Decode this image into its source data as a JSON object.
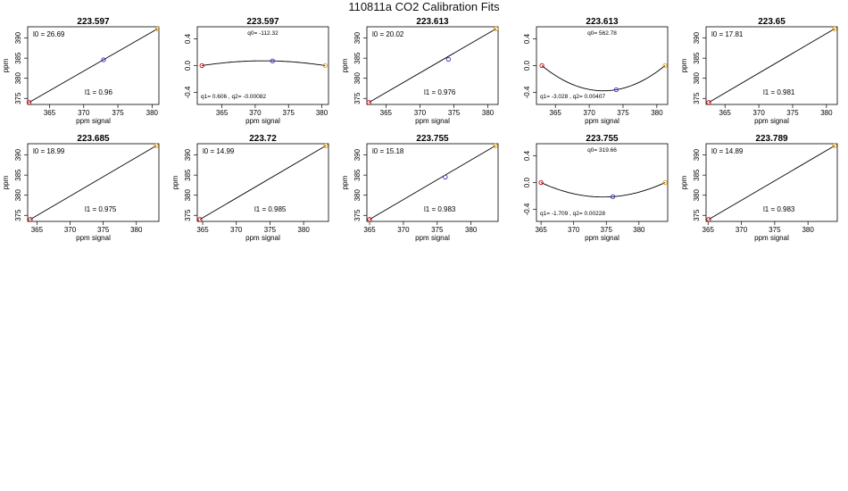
{
  "page": {
    "title": "110811a   CO2 Calibration Fits"
  },
  "chart_data": [
    {
      "type": "scatter",
      "title": "223.597",
      "xlabel": "ppm signal",
      "ylabel": "ppm",
      "xlim": [
        361.8,
        381.0
      ],
      "ylim": [
        373.5,
        392.8
      ],
      "xticks": [
        365,
        370,
        375,
        380
      ],
      "yticks": [
        375,
        380,
        385,
        390
      ],
      "points": [
        {
          "x": 362.0,
          "y": 374.0,
          "color": "#cc0000"
        },
        {
          "x": 372.9,
          "y": 384.6,
          "color": "#3333cc"
        },
        {
          "x": 380.8,
          "y": 392.3,
          "color": "#e69f00"
        }
      ],
      "fit": {
        "kind": "linear",
        "x0": 362.0,
        "y0": 374.0,
        "x1": 380.8,
        "y1": 392.3
      },
      "annotations": [
        {
          "text": "l0 =  26.69",
          "pos": "top-left"
        },
        {
          "text": "l1 =  0.96",
          "pos": "bottom-mid"
        }
      ]
    },
    {
      "type": "scatter",
      "title": "223.597",
      "xlabel": "ppm signal",
      "ylabel": "",
      "xlim": [
        361.3,
        381.0
      ],
      "ylim": [
        -0.58,
        0.58
      ],
      "xticks": [
        365,
        370,
        375,
        380
      ],
      "yticks": [
        -0.4,
        0.0,
        0.4
      ],
      "points": [
        {
          "x": 362.0,
          "y": 0.0,
          "color": "#cc0000"
        },
        {
          "x": 372.6,
          "y": 0.07,
          "color": "#3333cc"
        },
        {
          "x": 380.5,
          "y": 0.0,
          "color": "#e69f00"
        }
      ],
      "fit": {
        "kind": "quadratic",
        "x0": 362.0,
        "xm": 372.6,
        "x1": 380.5,
        "ym": 0.07
      },
      "annotations": [
        {
          "text": "q0= -112.32",
          "pos": "top-mid"
        },
        {
          "text": "q1= 0.606 , q2= -0.00082",
          "pos": "bottom-left"
        }
      ]
    },
    {
      "type": "scatter",
      "title": "223.613",
      "xlabel": "ppm signal",
      "ylabel": "ppm",
      "xlim": [
        362.2,
        381.5
      ],
      "ylim": [
        373.5,
        392.8
      ],
      "xticks": [
        365,
        370,
        375,
        380
      ],
      "yticks": [
        375,
        380,
        385,
        390
      ],
      "points": [
        {
          "x": 362.5,
          "y": 374.0,
          "color": "#cc0000"
        },
        {
          "x": 374.2,
          "y": 384.7,
          "color": "#3333cc"
        },
        {
          "x": 381.2,
          "y": 392.3,
          "color": "#e69f00"
        }
      ],
      "fit": {
        "kind": "linear",
        "x0": 362.5,
        "y0": 374.0,
        "x1": 381.2,
        "y1": 392.3
      },
      "annotations": [
        {
          "text": "l0 =  20.02",
          "pos": "top-left"
        },
        {
          "text": "l1 =  0.976",
          "pos": "bottom-mid"
        }
      ]
    },
    {
      "type": "scatter",
      "title": "223.613",
      "xlabel": "ppm signal",
      "ylabel": "",
      "xlim": [
        362.2,
        381.6
      ],
      "ylim": [
        -0.58,
        0.58
      ],
      "xticks": [
        365,
        370,
        375,
        380
      ],
      "yticks": [
        -0.4,
        0.0,
        0.4
      ],
      "points": [
        {
          "x": 363.0,
          "y": 0.0,
          "color": "#cc0000"
        },
        {
          "x": 374.0,
          "y": -0.36,
          "color": "#3333cc"
        },
        {
          "x": 381.2,
          "y": 0.0,
          "color": "#e69f00"
        }
      ],
      "fit": {
        "kind": "quadratic",
        "x0": 363.0,
        "xm": 374.0,
        "x1": 381.2,
        "ym": -0.36
      },
      "annotations": [
        {
          "text": "q0= 562.78",
          "pos": "top-mid"
        },
        {
          "text": "q1= -3.028 , q2= 0.00407",
          "pos": "bottom-left"
        }
      ]
    },
    {
      "type": "scatter",
      "title": "223.65",
      "xlabel": "ppm signal",
      "ylabel": "ppm",
      "xlim": [
        362.2,
        381.6
      ],
      "ylim": [
        373.5,
        392.8
      ],
      "xticks": [
        365,
        370,
        375,
        380
      ],
      "yticks": [
        375,
        380,
        385,
        390
      ],
      "points": [
        {
          "x": 362.6,
          "y": 374.0,
          "color": "#cc0000"
        },
        {
          "x": 381.2,
          "y": 392.3,
          "color": "#e69f00"
        }
      ],
      "fit": {
        "kind": "linear",
        "x0": 362.6,
        "y0": 374.0,
        "x1": 381.2,
        "y1": 392.3
      },
      "annotations": [
        {
          "text": "l0 =  17.81",
          "pos": "top-left"
        },
        {
          "text": "l1 =  0.981",
          "pos": "bottom-mid"
        }
      ]
    },
    {
      "type": "scatter",
      "title": "223.685",
      "xlabel": "ppm signal",
      "ylabel": "ppm",
      "xlim": [
        363.6,
        383.4
      ],
      "ylim": [
        373.5,
        392.8
      ],
      "xticks": [
        365,
        370,
        375,
        380
      ],
      "yticks": [
        375,
        380,
        385,
        390
      ],
      "points": [
        {
          "x": 364.0,
          "y": 374.0,
          "color": "#cc0000"
        },
        {
          "x": 383.0,
          "y": 392.3,
          "color": "#e69f00"
        }
      ],
      "fit": {
        "kind": "linear",
        "x0": 364.0,
        "y0": 374.0,
        "x1": 383.0,
        "y1": 392.3
      },
      "annotations": [
        {
          "text": "l0 =  18.99",
          "pos": "top-left"
        },
        {
          "text": "l1 =  0.975",
          "pos": "bottom-mid"
        }
      ]
    },
    {
      "type": "scatter",
      "title": "223.72",
      "xlabel": "ppm signal",
      "ylabel": "ppm",
      "xlim": [
        364.2,
        383.7
      ],
      "ylim": [
        373.5,
        392.8
      ],
      "xticks": [
        365,
        370,
        375,
        380
      ],
      "yticks": [
        375,
        380,
        385,
        390
      ],
      "points": [
        {
          "x": 364.6,
          "y": 374.0,
          "color": "#cc0000"
        },
        {
          "x": 383.3,
          "y": 392.3,
          "color": "#e69f00"
        }
      ],
      "fit": {
        "kind": "linear",
        "x0": 364.6,
        "y0": 374.0,
        "x1": 383.3,
        "y1": 392.3
      },
      "annotations": [
        {
          "text": "l0 =  14.99",
          "pos": "top-left"
        },
        {
          "text": "l1 =  0.985",
          "pos": "bottom-mid"
        }
      ]
    },
    {
      "type": "scatter",
      "title": "223.755",
      "xlabel": "ppm signal",
      "ylabel": "ppm",
      "xlim": [
        364.6,
        384.0
      ],
      "ylim": [
        373.5,
        392.8
      ],
      "xticks": [
        365,
        370,
        375,
        380
      ],
      "yticks": [
        375,
        380,
        385,
        390
      ],
      "points": [
        {
          "x": 365.0,
          "y": 374.0,
          "color": "#cc0000"
        },
        {
          "x": 376.2,
          "y": 384.5,
          "color": "#3333cc"
        },
        {
          "x": 383.6,
          "y": 392.3,
          "color": "#e69f00"
        }
      ],
      "fit": {
        "kind": "linear",
        "x0": 365.0,
        "y0": 374.0,
        "x1": 383.6,
        "y1": 392.3
      },
      "annotations": [
        {
          "text": "l0 =  15.18",
          "pos": "top-left"
        },
        {
          "text": "l1 =  0.983",
          "pos": "bottom-mid"
        }
      ]
    },
    {
      "type": "scatter",
      "title": "223.755",
      "xlabel": "ppm signal",
      "ylabel": "",
      "xlim": [
        364.3,
        384.4
      ],
      "ylim": [
        -0.58,
        0.58
      ],
      "xticks": [
        365,
        370,
        375,
        380
      ],
      "yticks": [
        -0.4,
        0.0,
        0.4
      ],
      "points": [
        {
          "x": 365.0,
          "y": 0.0,
          "color": "#cc0000"
        },
        {
          "x": 376.0,
          "y": -0.21,
          "color": "#3333cc"
        },
        {
          "x": 384.0,
          "y": 0.0,
          "color": "#e69f00"
        }
      ],
      "fit": {
        "kind": "quadratic",
        "x0": 365.0,
        "xm": 376.0,
        "x1": 384.0,
        "ym": -0.21
      },
      "annotations": [
        {
          "text": "q0= 319.66",
          "pos": "top-mid"
        },
        {
          "text": "q1= -1.709 , q2= 0.00228",
          "pos": "bottom-left"
        }
      ]
    },
    {
      "type": "scatter",
      "title": "223.789",
      "xlabel": "ppm signal",
      "ylabel": "ppm",
      "xlim": [
        364.7,
        384.4
      ],
      "ylim": [
        373.5,
        392.8
      ],
      "xticks": [
        365,
        370,
        375,
        380
      ],
      "yticks": [
        375,
        380,
        385,
        390
      ],
      "points": [
        {
          "x": 365.1,
          "y": 374.0,
          "color": "#cc0000"
        },
        {
          "x": 384.0,
          "y": 392.3,
          "color": "#e69f00"
        }
      ],
      "fit": {
        "kind": "linear",
        "x0": 365.1,
        "y0": 374.0,
        "x1": 384.0,
        "y1": 392.3
      },
      "annotations": [
        {
          "text": "l0 =  14.89",
          "pos": "top-left"
        },
        {
          "text": "l1 =  0.983",
          "pos": "bottom-mid"
        }
      ]
    }
  ]
}
